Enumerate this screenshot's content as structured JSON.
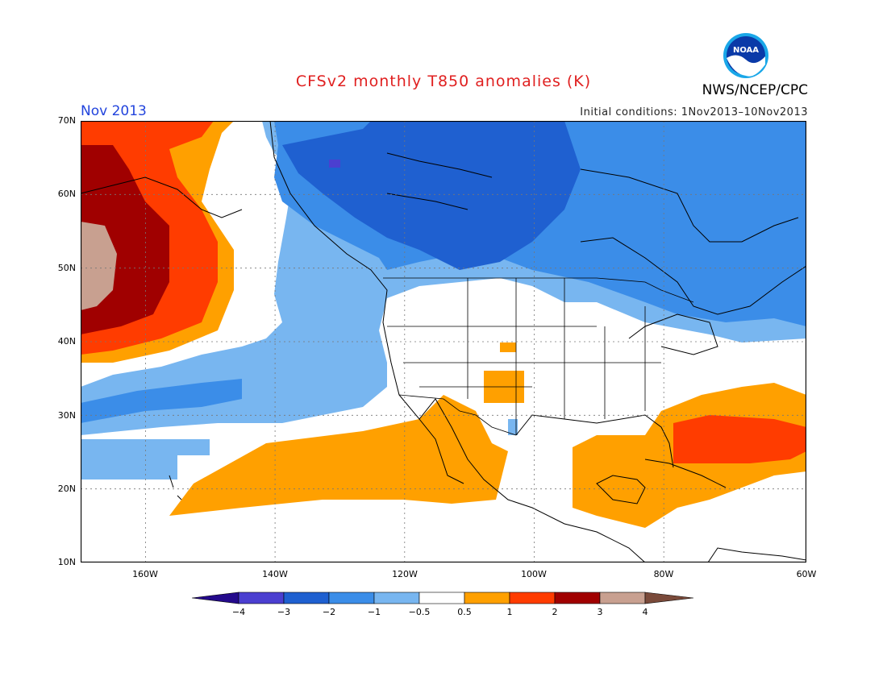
{
  "title": "CFSv2 monthly T850 anomalies (K)",
  "agency": "NWS/NCEP/CPC",
  "logo_text": "NOAA",
  "period": "Nov 2013",
  "initial_conditions": "Initial conditions: 1Nov2013–10Nov2013",
  "lat_labels": [
    "70N",
    "60N",
    "50N",
    "40N",
    "30N",
    "20N",
    "10N"
  ],
  "lon_labels": [
    "160W",
    "140W",
    "120W",
    "100W",
    "80W",
    "60W"
  ],
  "colorbar": {
    "labels": [
      "−4",
      "−3",
      "−2",
      "−1",
      "−0.5",
      "0.5",
      "1",
      "2",
      "3",
      "4"
    ],
    "colors": [
      "#240a8c",
      "#4b3fd0",
      "#1f60d0",
      "#3b8de8",
      "#78b6f0",
      "#ffffff",
      "#ffa000",
      "#ff3c00",
      "#a00000",
      "#c8a090",
      "#7a4a3a"
    ]
  },
  "map_extent": {
    "lon": [
      -172,
      -60
    ],
    "lat": [
      10,
      70
    ]
  }
}
